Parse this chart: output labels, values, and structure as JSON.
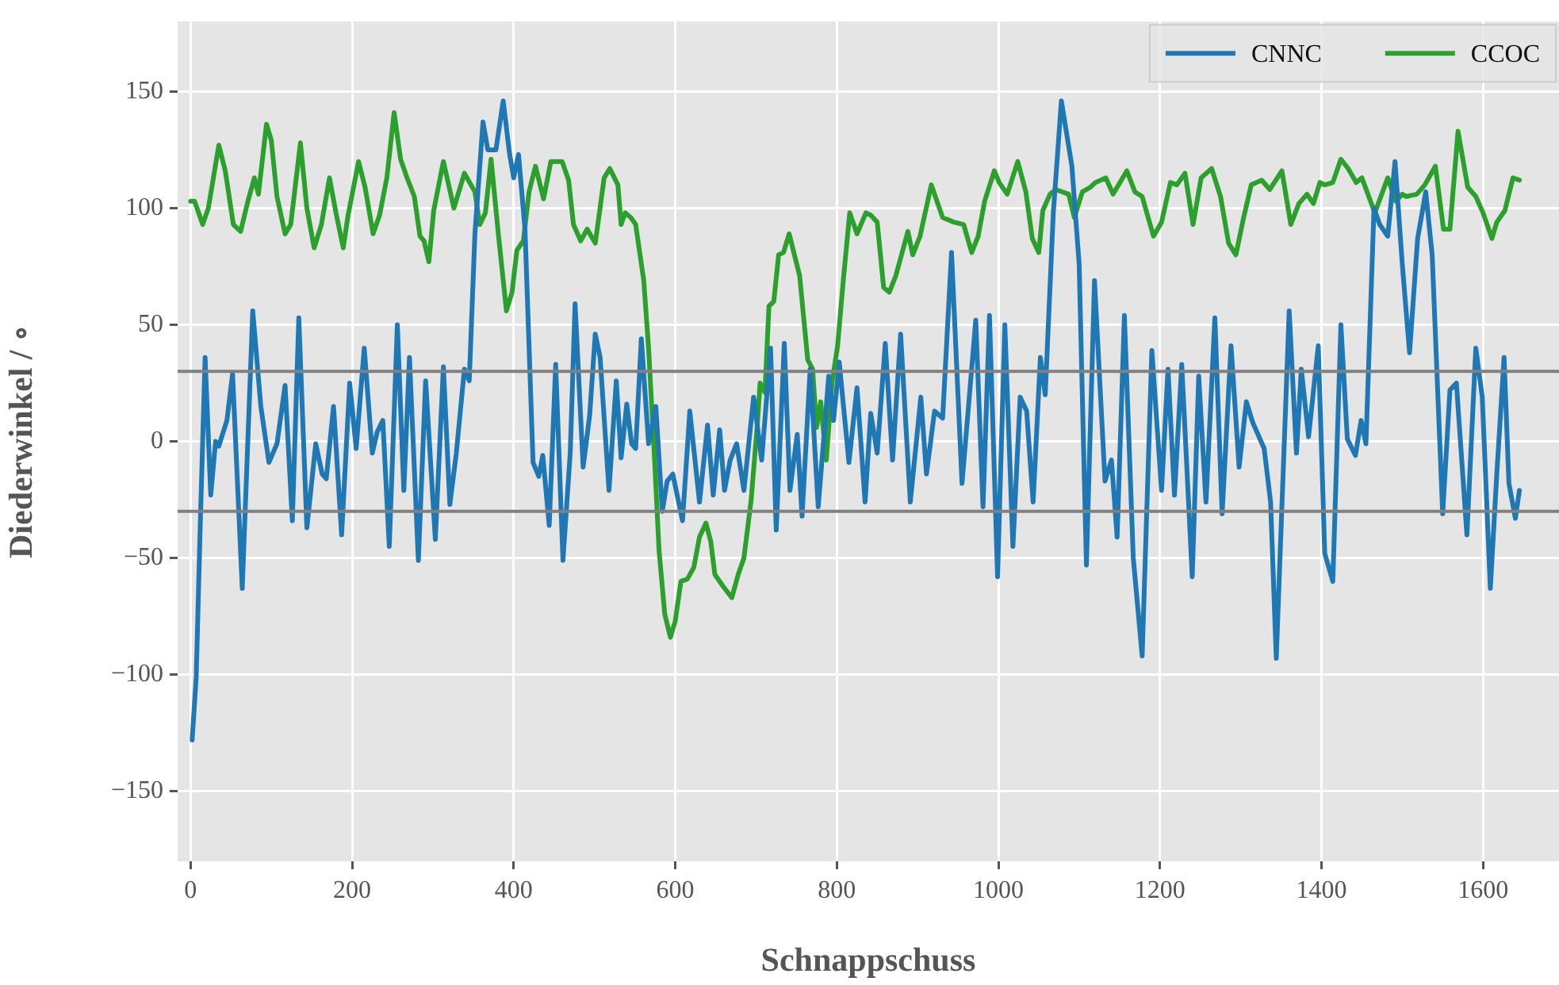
{
  "chart_data": {
    "type": "line",
    "xlabel": "Schnappschuss",
    "ylabel": "Diederwinkel / ∘",
    "xlim": [
      -16,
      1694
    ],
    "xticks": [
      0,
      200,
      400,
      600,
      800,
      1000,
      1200,
      1400,
      1600
    ],
    "ylim": [
      -180,
      180
    ],
    "yticks": [
      {
        "value": -150,
        "label": "−150"
      },
      {
        "value": -100,
        "label": "−100"
      },
      {
        "value": -50,
        "label": "−50"
      },
      0,
      50,
      100,
      150
    ],
    "grid": true,
    "legend": "top right",
    "line_style": "solid",
    "ref_lines": [
      {
        "axis": "y",
        "value": 30,
        "color": "#808080"
      },
      {
        "axis": "y",
        "value": -30,
        "color": "#808080"
      }
    ],
    "series": [
      {
        "name": "CNNC",
        "color": "#1f77b4",
        "x": [
          2,
          7,
          12,
          18,
          25,
          31,
          35,
          45,
          52,
          64,
          77,
          87,
          97,
          107,
          117,
          126,
          134,
          144,
          155,
          163,
          168,
          177,
          187,
          197,
          205,
          215,
          225,
          231,
          238,
          246,
          256,
          264,
          271,
          282,
          291,
          303,
          313,
          321,
          329,
          339,
          345,
          352,
          362,
          368,
          378,
          387,
          395,
          400,
          406,
          414,
          424,
          431,
          436,
          444,
          452,
          461,
          470,
          476,
          486,
          494,
          501,
          507,
          518,
          527,
          533,
          540,
          546,
          551,
          558,
          567,
          576,
          584,
          590,
          597,
          609,
          618,
          630,
          640,
          647,
          655,
          661,
          668,
          676,
          685,
          697,
          707,
          718,
          725,
          735,
          742,
          751,
          757,
          767,
          777,
          790,
          796,
          803,
          815,
          825,
          835,
          842,
          850,
          860,
          869,
          879,
          891,
          904,
          911,
          921,
          931,
          942,
          955,
          972,
          981,
          989,
          999,
          1008,
          1018,
          1027,
          1035,
          1043,
          1052,
          1058,
          1068,
          1078,
          1091,
          1100,
          1109,
          1119,
          1132,
          1140,
          1147,
          1156,
          1167,
          1178,
          1190,
          1202,
          1210,
          1218,
          1227,
          1240,
          1248,
          1257,
          1268,
          1277,
          1288,
          1298,
          1307,
          1315,
          1329,
          1337,
          1344,
          1350,
          1360,
          1369,
          1375,
          1384,
          1396,
          1404,
          1414,
          1424,
          1432,
          1442,
          1449,
          1455,
          1465,
          1472,
          1482,
          1491,
          1500,
          1509,
          1519,
          1529,
          1537,
          1550,
          1559,
          1567,
          1580,
          1591,
          1599,
          1609,
          1617,
          1626,
          1632,
          1640,
          1645
        ],
        "values": [
          -128,
          -101,
          -36,
          36,
          -23,
          0,
          -2,
          9,
          29,
          -63,
          56,
          15,
          -9,
          -1,
          24,
          -34,
          53,
          -37,
          -1,
          -14,
          -16,
          15,
          -40,
          25,
          -3,
          40,
          -5,
          4,
          9,
          -45,
          50,
          -21,
          36,
          -51,
          26,
          -42,
          32,
          -27,
          -5,
          31,
          26,
          89,
          137,
          125,
          125,
          146,
          123,
          113,
          123,
          91,
          -9,
          -15,
          -6,
          -36,
          33,
          -51,
          -5,
          59,
          -11,
          11,
          46,
          36,
          -21,
          26,
          -7,
          16,
          -1,
          -3,
          44,
          -1,
          15,
          -30,
          -17,
          -14,
          -34,
          13,
          -26,
          7,
          -23,
          5,
          -21,
          -8,
          -1,
          -21,
          19,
          -8,
          40,
          -38,
          42,
          -21,
          3,
          -32,
          31,
          -28,
          28,
          9,
          34,
          -9,
          23,
          -26,
          12,
          -5,
          42,
          -8,
          46,
          -26,
          19,
          -14,
          13,
          10,
          81,
          -18,
          52,
          -28,
          54,
          -58,
          50,
          -45,
          19,
          13,
          -26,
          36,
          20,
          98,
          146,
          118,
          76,
          -53,
          69,
          -17,
          -8,
          -41,
          54,
          -50,
          -92,
          39,
          -21,
          31,
          -23,
          33,
          -58,
          28,
          -26,
          53,
          -31,
          41,
          -11,
          17,
          8,
          -3,
          -26,
          -93,
          -37,
          56,
          -5,
          31,
          2,
          41,
          -48,
          -60,
          50,
          1,
          -6,
          9,
          -1,
          100,
          93,
          88,
          120,
          76,
          38,
          87,
          107,
          80,
          -31,
          22,
          25,
          -40,
          40,
          19,
          -63,
          -14,
          36,
          -18,
          -33,
          -21
        ]
      },
      {
        "name": "CCOC",
        "color": "#2ca02c",
        "x": [
          0,
          5,
          15,
          22,
          35,
          43,
          53,
          62,
          71,
          79,
          84,
          94,
          100,
          107,
          117,
          124,
          136,
          144,
          153,
          162,
          172,
          180,
          189,
          195,
          208,
          216,
          226,
          234,
          243,
          252,
          260,
          268,
          277,
          284,
          289,
          295,
          301,
          313,
          326,
          339,
          352,
          358,
          365,
          372,
          381,
          391,
          398,
          404,
          412,
          419,
          427,
          437,
          446,
          460,
          468,
          474,
          483,
          491,
          501,
          512,
          519,
          529,
          533,
          538,
          545,
          551,
          561,
          567,
          574,
          580,
          587,
          594,
          600,
          607,
          615,
          623,
          630,
          638,
          644,
          649,
          659,
          670,
          678,
          685,
          694,
          702,
          705,
          711,
          716,
          722,
          728,
          734,
          741,
          754,
          764,
          770,
          775,
          780,
          787,
          794,
          801,
          808,
          816,
          825,
          836,
          842,
          850,
          858,
          865,
          873,
          888,
          894,
          903,
          917,
          931,
          945,
          957,
          967,
          975,
          983,
          995,
          1001,
          1011,
          1024,
          1034,
          1042,
          1050,
          1055,
          1064,
          1071,
          1087,
          1094,
          1104,
          1114,
          1120,
          1133,
          1142,
          1159,
          1169,
          1178,
          1192,
          1202,
          1213,
          1221,
          1231,
          1241,
          1251,
          1264,
          1275,
          1285,
          1294,
          1303,
          1313,
          1326,
          1336,
          1351,
          1362,
          1372,
          1382,
          1390,
          1398,
          1404,
          1414,
          1424,
          1433,
          1443,
          1450,
          1466,
          1482,
          1492,
          1500,
          1505,
          1518,
          1528,
          1541,
          1551,
          1559,
          1569,
          1581,
          1591,
          1600,
          1611,
          1617,
          1627,
          1637,
          1645
        ],
        "values": [
          103,
          103,
          93,
          100,
          127,
          116,
          93,
          90,
          103,
          113,
          106,
          136,
          129,
          105,
          89,
          93,
          128,
          100,
          83,
          93,
          113,
          98,
          83,
          97,
          120,
          109,
          89,
          97,
          113,
          141,
          121,
          113,
          105,
          88,
          86,
          77,
          99,
          120,
          100,
          115,
          107,
          93,
          98,
          121,
          89,
          56,
          64,
          82,
          86,
          107,
          118,
          104,
          120,
          120,
          112,
          93,
          86,
          91,
          85,
          113,
          117,
          110,
          93,
          98,
          96,
          93,
          69,
          40,
          -5,
          -47,
          -74,
          -84,
          -77,
          -60,
          -59,
          -54,
          -41,
          -35,
          -43,
          -57,
          -62,
          -67,
          -57,
          -50,
          -25,
          9,
          25,
          21,
          58,
          60,
          80,
          81,
          89,
          71,
          35,
          31,
          6,
          17,
          -8,
          25,
          41,
          69,
          98,
          89,
          98,
          97,
          94,
          66,
          64,
          71,
          90,
          80,
          88,
          110,
          96,
          94,
          93,
          81,
          88,
          103,
          116,
          111,
          106,
          120,
          107,
          87,
          81,
          99,
          106,
          108,
          106,
          96,
          107,
          109,
          111,
          113,
          106,
          116,
          107,
          105,
          88,
          94,
          111,
          110,
          115,
          93,
          113,
          117,
          105,
          85,
          80,
          95,
          110,
          112,
          108,
          116,
          93,
          102,
          106,
          102,
          111,
          110,
          111,
          121,
          117,
          111,
          113,
          98,
          113,
          103,
          106,
          105,
          106,
          110,
          118,
          91,
          91,
          133,
          109,
          105,
          98,
          87,
          94,
          99,
          113,
          112
        ]
      }
    ]
  }
}
